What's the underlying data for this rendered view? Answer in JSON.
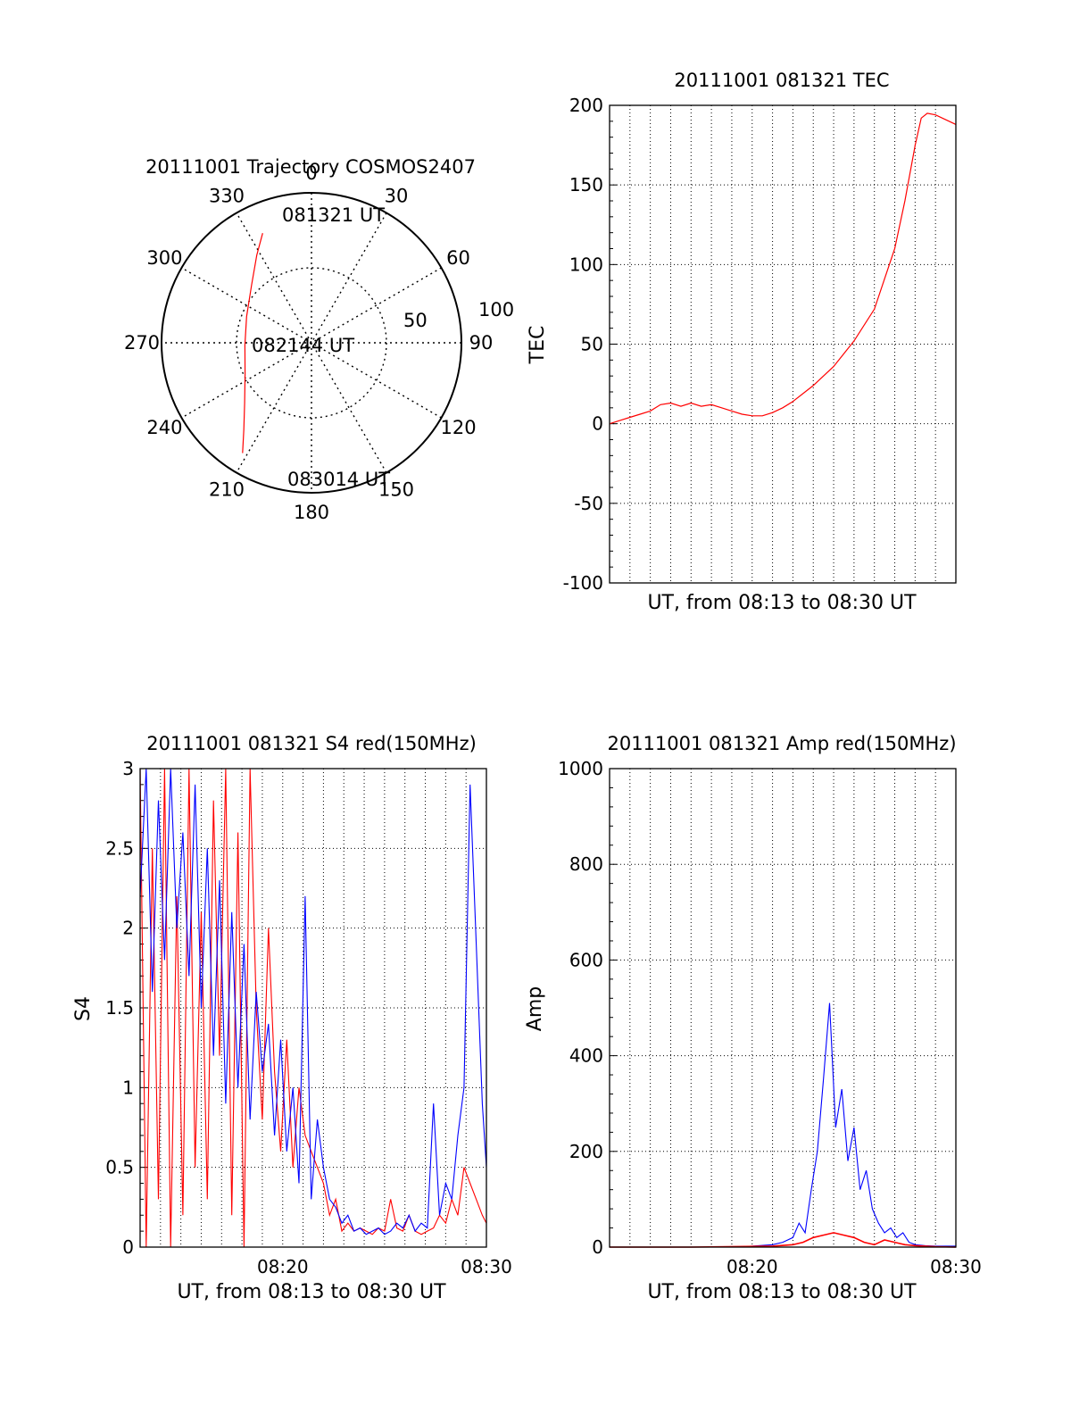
{
  "colors": {
    "red": "#ff0000",
    "blue": "#0000ff",
    "axis": "#000000",
    "grid": "#000000"
  },
  "chart_data": [
    {
      "type": "polar",
      "title": "20111001 Trajectory COSMOS2407",
      "angle_labels": [
        "0",
        "30",
        "60",
        "90",
        "120",
        "150",
        "180",
        "210",
        "240",
        "270",
        "300",
        "330"
      ],
      "radial_labels": [
        "50",
        "100"
      ],
      "grid": true,
      "series": [
        {
          "color": "red",
          "points": [
            {
              "az": 336,
              "el": 18
            },
            {
              "az": 328,
              "el": 28
            },
            {
              "az": 314,
              "el": 40
            },
            {
              "az": 292,
              "el": 48
            },
            {
              "az": 268,
              "el": 50
            },
            {
              "az": 245,
              "el": 46
            },
            {
              "az": 228,
              "el": 36
            },
            {
              "az": 218,
              "el": 24
            },
            {
              "az": 212,
              "el": 12
            }
          ]
        }
      ],
      "annotations": [
        "081321 UT",
        "082144 UT",
        "083014 UT"
      ]
    },
    {
      "type": "line",
      "title": "20111001 081321 TEC",
      "xlabel": "UT, from 08:13 to 08:30 UT",
      "ylabel": "TEC",
      "xlim": [
        0,
        17.0
      ],
      "ylim": [
        -100,
        200
      ],
      "yticks": [
        "200",
        "150",
        "100",
        "50",
        "0",
        "-50",
        "-100"
      ],
      "grid": true,
      "series": [
        {
          "color": "red",
          "x": [
            0,
            0.5,
            1.0,
            1.5,
            2.0,
            2.5,
            3.0,
            3.5,
            4.0,
            4.5,
            5.0,
            5.5,
            6.0,
            6.5,
            7.0,
            7.5,
            8.0,
            8.5,
            9.0,
            10.0,
            11.0,
            12.0,
            13.0,
            14.0,
            14.5,
            15.0,
            15.3,
            15.6,
            16.0,
            16.5,
            17.0
          ],
          "y": [
            0,
            2,
            4,
            6,
            8,
            12,
            13,
            11,
            13,
            11,
            12,
            10,
            8,
            6,
            5,
            5,
            7,
            10,
            14,
            24,
            36,
            52,
            72,
            110,
            140,
            175,
            192,
            195,
            194,
            191,
            188
          ]
        }
      ]
    },
    {
      "type": "line",
      "title": "20111001 081321 S4 red(150MHz)",
      "xlabel": "UT, from 08:13 to 08:30 UT",
      "ylabel": "S4",
      "xlim": [
        0,
        17.0
      ],
      "ylim": [
        0,
        3
      ],
      "xticks": [
        "08:20",
        "08:30"
      ],
      "yticks": [
        "3",
        "2.5",
        "2",
        "1.5",
        "1",
        "0.5",
        "0"
      ],
      "grid": true,
      "series": [
        {
          "color": "red",
          "x": [
            0,
            0.3,
            0.6,
            0.9,
            1.2,
            1.5,
            1.8,
            2.1,
            2.4,
            2.7,
            3.0,
            3.3,
            3.6,
            3.9,
            4.2,
            4.5,
            4.8,
            5.1,
            5.4,
            5.7,
            6.0,
            6.3,
            6.6,
            6.9,
            7.2,
            7.5,
            7.8,
            8.1,
            8.4,
            8.7,
            9.0,
            9.3,
            9.6,
            9.9,
            10.2,
            10.5,
            10.8,
            11.1,
            11.4,
            11.7,
            12.0,
            12.3,
            12.6,
            12.9,
            13.2,
            13.5,
            13.8,
            14.1,
            14.4,
            14.7,
            15.0,
            15.3,
            15.6,
            15.9,
            16.2,
            16.5,
            16.8,
            17.0
          ],
          "y": [
            3.0,
            0.0,
            2.5,
            0.3,
            3.0,
            0.0,
            2.2,
            0.2,
            3.0,
            0.5,
            2.1,
            0.3,
            2.8,
            1.2,
            3.0,
            0.2,
            2.6,
            0.0,
            3.0,
            1.5,
            0.8,
            2.0,
            1.1,
            0.6,
            1.3,
            0.5,
            1.0,
            0.7,
            0.6,
            0.5,
            0.4,
            0.2,
            0.3,
            0.1,
            0.15,
            0.1,
            0.12,
            0.1,
            0.08,
            0.12,
            0.1,
            0.3,
            0.12,
            0.1,
            0.2,
            0.1,
            0.08,
            0.1,
            0.12,
            0.2,
            0.15,
            0.3,
            0.2,
            0.5,
            0.4,
            0.3,
            0.2,
            0.15
          ]
        },
        {
          "color": "blue",
          "x": [
            0,
            0.3,
            0.6,
            0.9,
            1.2,
            1.5,
            1.8,
            2.1,
            2.4,
            2.7,
            3.0,
            3.3,
            3.6,
            3.9,
            4.2,
            4.5,
            4.8,
            5.1,
            5.4,
            5.7,
            6.0,
            6.3,
            6.6,
            6.9,
            7.2,
            7.5,
            7.8,
            8.1,
            8.4,
            8.7,
            9.0,
            9.3,
            9.6,
            9.9,
            10.2,
            10.5,
            10.8,
            11.1,
            11.4,
            11.7,
            12.0,
            12.3,
            12.6,
            12.9,
            13.2,
            13.5,
            13.8,
            14.1,
            14.4,
            14.7,
            15.0,
            15.3,
            15.6,
            15.9,
            16.2,
            16.5,
            16.8,
            17.0
          ],
          "y": [
            2.2,
            3.0,
            1.6,
            2.8,
            1.8,
            3.0,
            2.0,
            2.6,
            1.7,
            2.9,
            1.5,
            2.5,
            1.2,
            2.3,
            0.9,
            2.1,
            1.0,
            1.9,
            0.8,
            1.6,
            1.1,
            1.4,
            0.7,
            1.3,
            0.6,
            1.0,
            0.4,
            2.2,
            0.3,
            0.8,
            0.5,
            0.3,
            0.25,
            0.15,
            0.2,
            0.1,
            0.12,
            0.08,
            0.1,
            0.12,
            0.08,
            0.1,
            0.15,
            0.12,
            0.2,
            0.1,
            0.15,
            0.12,
            0.9,
            0.2,
            0.4,
            0.3,
            0.7,
            1.0,
            2.9,
            1.9,
            0.9,
            0.5
          ]
        }
      ]
    },
    {
      "type": "line",
      "title": "20111001 081321 Amp red(150MHz)",
      "xlabel": "UT, from 08:13 to 08:30 UT",
      "ylabel": "Amp",
      "xlim": [
        0,
        17.0
      ],
      "ylim": [
        0,
        1000
      ],
      "xticks": [
        "08:20",
        "08:30"
      ],
      "yticks": [
        "1000",
        "800",
        "600",
        "400",
        "200",
        "0"
      ],
      "grid": true,
      "series": [
        {
          "color": "blue",
          "x": [
            0,
            2,
            4,
            6,
            7,
            8,
            8.5,
            9.0,
            9.3,
            9.6,
            9.9,
            10.2,
            10.5,
            10.8,
            11.1,
            11.4,
            11.7,
            12.0,
            12.3,
            12.6,
            12.9,
            13.2,
            13.5,
            13.8,
            14.1,
            14.4,
            14.7,
            15.0,
            15.5,
            16.0,
            17.0
          ],
          "y": [
            0,
            0,
            0,
            0,
            2,
            5,
            10,
            20,
            50,
            30,
            120,
            200,
            350,
            510,
            250,
            330,
            180,
            250,
            120,
            160,
            80,
            50,
            30,
            40,
            20,
            30,
            10,
            5,
            3,
            2,
            2
          ]
        },
        {
          "color": "red",
          "x": [
            0,
            4,
            8,
            9.0,
            9.5,
            10.0,
            10.5,
            11.0,
            11.5,
            12.0,
            12.5,
            13.0,
            13.5,
            14.0,
            14.5,
            15.0,
            16.0,
            17.0
          ],
          "y": [
            0,
            0,
            2,
            5,
            10,
            20,
            25,
            30,
            25,
            20,
            10,
            5,
            15,
            10,
            5,
            3,
            1,
            0
          ]
        }
      ]
    }
  ]
}
